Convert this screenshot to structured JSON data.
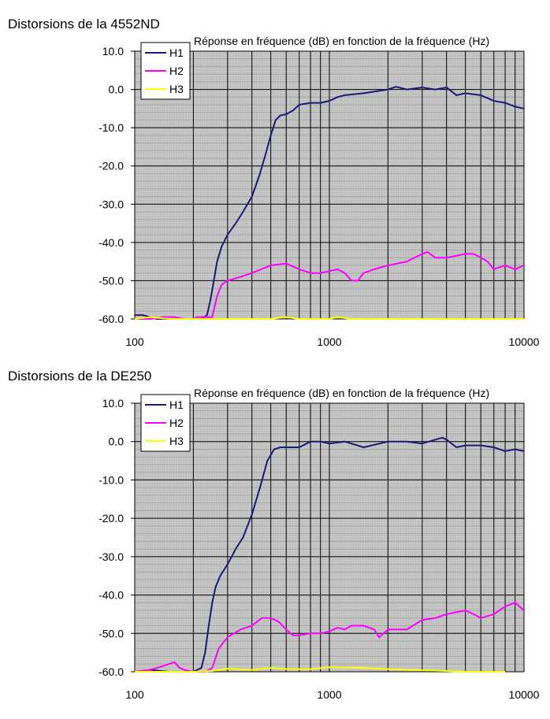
{
  "chart_data": [
    {
      "type": "line",
      "heading": "Distorsions de la 4552ND",
      "title": "Réponse en fréquence (dB) en fonction de la fréquence (Hz)",
      "xlabel": "",
      "ylabel": "",
      "xscale": "log",
      "xlim": [
        100,
        10000
      ],
      "ylim": [
        -60,
        10
      ],
      "xticks": [
        100,
        1000,
        10000
      ],
      "xtick_labels": [
        "100",
        "1000",
        "10000"
      ],
      "yticks": [
        10,
        0,
        -10,
        -20,
        -30,
        -40,
        -50,
        -60
      ],
      "ytick_labels": [
        "10.0",
        "0.0",
        "-10.0",
        "-20.0",
        "-30.0",
        "-40.0",
        "-50.0",
        "-60.0"
      ],
      "grid": true,
      "legend_position": "top-left",
      "colors": {
        "plot_background": "#c0c0c0",
        "gridline": "#000000"
      },
      "series": [
        {
          "name": "H1",
          "color": "#1a1a7a",
          "x": [
            100,
            110,
            130,
            150,
            180,
            200,
            220,
            235,
            245,
            255,
            265,
            280,
            300,
            330,
            360,
            400,
            420,
            440,
            470,
            500,
            530,
            560,
            600,
            650,
            700,
            800,
            900,
            1000,
            1100,
            1200,
            1500,
            2000,
            2200,
            2500,
            3000,
            3500,
            4000,
            4500,
            5000,
            6000,
            7000,
            8000,
            9000,
            10000
          ],
          "y": [
            -59,
            -59,
            -60,
            -60,
            -60,
            -60,
            -60,
            -59,
            -55,
            -50,
            -45,
            -41,
            -38,
            -35,
            -32,
            -28,
            -25,
            -22,
            -17,
            -12,
            -8,
            -6.8,
            -6.5,
            -5.5,
            -4,
            -3.5,
            -3.5,
            -3,
            -2,
            -1.5,
            -1,
            0,
            0.7,
            0,
            0.5,
            0,
            0.5,
            -1.5,
            -1,
            -1.5,
            -3,
            -3.5,
            -4.5,
            -5
          ]
        },
        {
          "name": "H2",
          "color": "#ff00ff",
          "x": [
            100,
            120,
            140,
            160,
            180,
            200,
            210,
            250,
            265,
            280,
            300,
            350,
            400,
            500,
            600,
            700,
            800,
            900,
            1000,
            1100,
            1200,
            1300,
            1400,
            1500,
            1700,
            2000,
            2500,
            3000,
            3200,
            3500,
            4000,
            5000,
            5500,
            6000,
            6500,
            7000,
            8000,
            9000,
            10000
          ],
          "y": [
            -60,
            -60,
            -59.5,
            -59.5,
            -60,
            -60,
            -59.5,
            -59.5,
            -54,
            -51,
            -50,
            -49,
            -48,
            -46,
            -45.5,
            -47,
            -48,
            -48,
            -47.5,
            -47,
            -48,
            -50,
            -50,
            -48,
            -47,
            -46,
            -45,
            -43,
            -42.5,
            -44,
            -44,
            -43,
            -43,
            -44,
            -45,
            -47,
            -46,
            -47,
            -46
          ]
        },
        {
          "name": "H3",
          "color": "#ffff00",
          "x": [
            100,
            120,
            150,
            200,
            300,
            500,
            600,
            700,
            800,
            1000,
            1100,
            1300,
            2000,
            3000,
            5000,
            7000,
            10000
          ],
          "y": [
            -60,
            -59.5,
            -60,
            -60,
            -60,
            -60,
            -59.5,
            -60,
            -60,
            -60,
            -59.5,
            -60,
            -60,
            -60,
            -60,
            -60,
            -60
          ]
        }
      ]
    },
    {
      "type": "line",
      "heading": "Distorsions de la DE250",
      "title": "Réponse en fréquence (dB) en fonction de la fréquence (Hz)",
      "xlabel": "",
      "ylabel": "",
      "xscale": "log",
      "xlim": [
        100,
        10000
      ],
      "ylim": [
        -60,
        10
      ],
      "xticks": [
        100,
        1000,
        10000
      ],
      "xtick_labels": [
        "100",
        "1000",
        "10000"
      ],
      "yticks": [
        10,
        0,
        -10,
        -20,
        -30,
        -40,
        -50,
        -60
      ],
      "ytick_labels": [
        "10.0",
        "0.0",
        "-10.0",
        "-20.0",
        "-30.0",
        "-40.0",
        "-50.0",
        "-60.0"
      ],
      "grid": true,
      "legend_position": "top-left",
      "colors": {
        "plot_background": "#c0c0c0",
        "gridline": "#000000"
      },
      "series": [
        {
          "name": "H1",
          "color": "#1a1a7a",
          "x": [
            100,
            120,
            150,
            180,
            200,
            220,
            230,
            240,
            250,
            260,
            275,
            300,
            330,
            360,
            400,
            440,
            480,
            520,
            560,
            600,
            650,
            700,
            800,
            900,
            1000,
            1200,
            1500,
            2000,
            2500,
            3000,
            3500,
            3800,
            4000,
            4500,
            5000,
            6000,
            7000,
            8000,
            9000,
            10000
          ],
          "y": [
            -60,
            -59.5,
            -60,
            -60,
            -60,
            -59,
            -55,
            -48,
            -42,
            -38,
            -35,
            -32,
            -28,
            -25,
            -19,
            -12,
            -5,
            -2,
            -1.5,
            -1.5,
            -1.5,
            -1.5,
            0,
            0,
            -0.5,
            0,
            -1.5,
            0,
            0,
            -0.5,
            0.5,
            1,
            0.5,
            -1.5,
            -1,
            -1,
            -1.5,
            -2.5,
            -2,
            -2.5
          ]
        },
        {
          "name": "H2",
          "color": "#ff00ff",
          "x": [
            100,
            120,
            140,
            160,
            170,
            180,
            200,
            230,
            250,
            270,
            300,
            350,
            400,
            450,
            500,
            550,
            600,
            650,
            700,
            800,
            900,
            1000,
            1100,
            1200,
            1300,
            1500,
            1700,
            1800,
            2000,
            2500,
            3000,
            3500,
            4000,
            5000,
            5500,
            6000,
            7000,
            8000,
            9000,
            10000
          ],
          "y": [
            -60,
            -59.5,
            -58.5,
            -57.5,
            -59,
            -59.5,
            -60,
            -60,
            -59,
            -54,
            -51,
            -49,
            -48,
            -46,
            -46,
            -47,
            -49,
            -50.5,
            -50.5,
            -50,
            -50,
            -49.5,
            -48.5,
            -49,
            -48,
            -48,
            -49,
            -51,
            -49,
            -49,
            -46.5,
            -46,
            -45,
            -44,
            -45,
            -46,
            -45,
            -43,
            -42,
            -44
          ]
        },
        {
          "name": "H3",
          "color": "#ffff00",
          "x": [
            100,
            150,
            200,
            250,
            300,
            400,
            500,
            600,
            700,
            800,
            1000,
            1500,
            2000,
            3000,
            4000,
            5000,
            6000,
            8000
          ],
          "y": [
            -60,
            -60,
            -60,
            -59.8,
            -59.2,
            -59.5,
            -59,
            -59.3,
            -59.3,
            -59.3,
            -58.8,
            -59,
            -59.3,
            -59.6,
            -59.8,
            -60,
            -60,
            -60
          ]
        }
      ]
    }
  ]
}
